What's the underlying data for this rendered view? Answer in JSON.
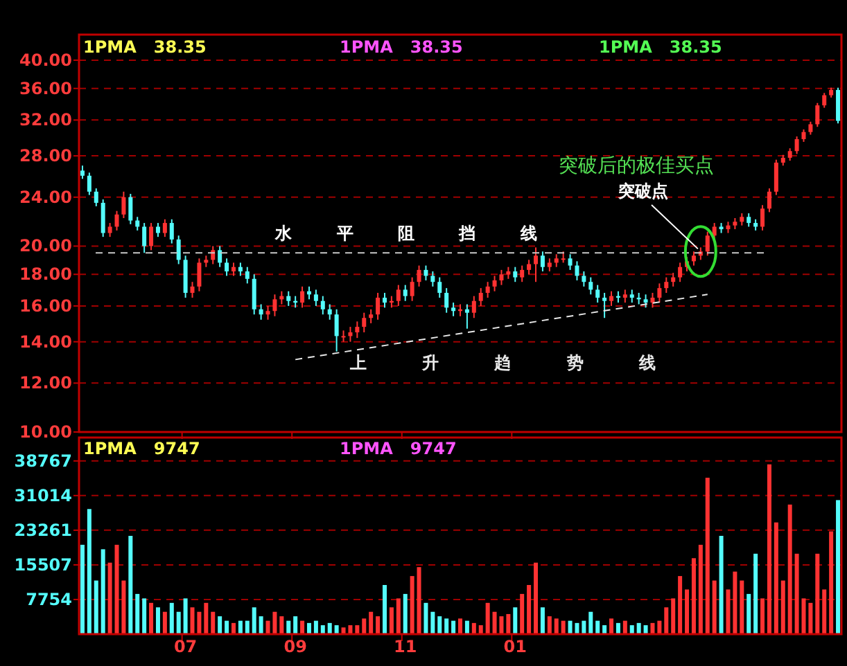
{
  "chart_data": [
    {
      "type": "candlestick",
      "log": "y",
      "grid": "y",
      "tick_labels": "y",
      "colors": [
        "#54fcfc",
        "#54fcfc",
        "#54fcfc",
        "#54fcfc",
        "#ff3232",
        "#ff3232",
        "#ff3232",
        "#54fcfc",
        "#54fcfc",
        "#54fcfc",
        "#ff3232",
        "#54fcfc",
        "#ff3232",
        "#54fcfc",
        "#54fcfc",
        "#54fcfc",
        "#ff3232",
        "#ff3232",
        "#ff3232",
        "#ff3232",
        "#54fcfc",
        "#54fcfc",
        "#ff3232",
        "#54fcfc",
        "#54fcfc",
        "#54fcfc",
        "#54fcfc",
        "#ff3232",
        "#ff3232",
        "#ff3232",
        "#54fcfc",
        "#54fcfc",
        "#ff3232",
        "#54fcfc",
        "#54fcfc",
        "#54fcfc",
        "#54fcfc",
        "#54fcfc",
        "#ff3232",
        "#ff3232",
        "#ff3232",
        "#ff3232",
        "#ff3232",
        "#ff3232",
        "#54fcfc",
        "#ff3232",
        "#ff3232",
        "#54fcfc",
        "#ff3232",
        "#ff3232",
        "#54fcfc",
        "#54fcfc",
        "#54fcfc",
        "#54fcfc",
        "#54fcfc",
        "#ff3232",
        "#54fcfc",
        "#ff3232",
        "#ff3232",
        "#ff3232",
        "#ff3232",
        "#ff3232",
        "#ff3232",
        "#54fcfc",
        "#ff3232",
        "#ff3232",
        "#ff3232",
        "#54fcfc",
        "#ff3232",
        "#ff3232",
        "#ff3232",
        "#54fcfc",
        "#54fcfc",
        "#54fcfc",
        "#54fcfc",
        "#54fcfc",
        "#54fcfc",
        "#ff3232",
        "#54fcfc",
        "#ff3232",
        "#54fcfc",
        "#54fcfc",
        "#54fcfc",
        "#ff3232",
        "#ff3232",
        "#ff3232",
        "#ff3232",
        "#ff3232",
        "#ff3232",
        "#ff3232",
        "#ff3232",
        "#ff3232",
        "#ff3232",
        "#54fcfc",
        "#ff3232",
        "#ff3232",
        "#ff3232",
        "#54fcfc",
        "#54fcfc",
        "#ff3232",
        "#ff3232",
        "#ff3232",
        "#ff3232",
        "#ff3232",
        "#ff3232",
        "#ff3232",
        "#ff3232",
        "#ff3232",
        "#ff3232",
        "#ff3232",
        "#54fcfc"
      ],
      "categories": [
        null,
        null,
        null,
        null,
        null,
        null,
        null,
        null,
        null,
        null,
        null,
        null,
        null,
        null,
        null,
        "07",
        null,
        null,
        null,
        null,
        null,
        null,
        null,
        null,
        null,
        null,
        null,
        null,
        null,
        null,
        null,
        "09",
        null,
        null,
        null,
        null,
        null,
        null,
        null,
        null,
        null,
        null,
        null,
        null,
        null,
        null,
        null,
        "11",
        null,
        null,
        null,
        null,
        null,
        null,
        null,
        null,
        null,
        null,
        null,
        null,
        null,
        null,
        null,
        "01",
        null,
        null,
        null,
        null,
        null,
        null,
        null,
        null,
        null,
        null,
        null,
        null,
        null,
        null,
        null,
        null,
        null,
        null,
        null,
        null,
        null,
        null,
        null,
        null,
        null,
        null,
        null,
        null,
        null,
        null,
        null,
        null,
        null,
        null,
        null,
        null,
        null,
        null,
        null,
        null,
        null,
        null,
        null,
        null,
        null,
        null,
        null
      ],
      "ohlc": [
        [
          26.5,
          27.0,
          25.7,
          26.0
        ],
        [
          26.0,
          26.3,
          24.2,
          24.5
        ],
        [
          24.5,
          24.8,
          23.2,
          23.5
        ],
        [
          23.5,
          23.8,
          20.7,
          21.0
        ],
        [
          21.0,
          21.8,
          20.7,
          21.5
        ],
        [
          21.5,
          22.8,
          21.2,
          22.5
        ],
        [
          22.5,
          24.5,
          22.2,
          24.0
        ],
        [
          24.0,
          24.3,
          21.7,
          22.0
        ],
        [
          22.0,
          22.3,
          21.2,
          21.5
        ],
        [
          21.5,
          21.8,
          19.5,
          20.0
        ],
        [
          20.0,
          21.8,
          19.7,
          21.5
        ],
        [
          21.5,
          21.8,
          20.7,
          21.0
        ],
        [
          21.0,
          22.1,
          20.7,
          21.8
        ],
        [
          21.8,
          22.1,
          20.2,
          20.5
        ],
        [
          20.5,
          20.8,
          18.7,
          19.0
        ],
        [
          19.0,
          19.3,
          16.5,
          16.8
        ],
        [
          16.8,
          17.5,
          16.5,
          17.2
        ],
        [
          17.2,
          19.1,
          16.9,
          18.8
        ],
        [
          18.8,
          19.3,
          18.5,
          19.0
        ],
        [
          19.0,
          20.0,
          18.7,
          19.7
        ],
        [
          19.7,
          20.0,
          18.5,
          18.8
        ],
        [
          18.8,
          19.1,
          17.9,
          18.2
        ],
        [
          18.2,
          18.8,
          17.9,
          18.5
        ],
        [
          18.5,
          18.8,
          17.9,
          18.2
        ],
        [
          18.2,
          18.5,
          17.4,
          17.7
        ],
        [
          17.7,
          18.0,
          15.5,
          15.8
        ],
        [
          15.8,
          16.1,
          15.2,
          15.5
        ],
        [
          15.5,
          16.0,
          15.2,
          15.7
        ],
        [
          15.7,
          16.7,
          15.4,
          16.4
        ],
        [
          16.4,
          16.9,
          16.1,
          16.6
        ],
        [
          16.6,
          16.9,
          16.0,
          16.3
        ],
        [
          16.3,
          16.6,
          15.9,
          16.2
        ],
        [
          16.2,
          17.2,
          15.9,
          16.9
        ],
        [
          16.9,
          17.2,
          16.4,
          16.7
        ],
        [
          16.7,
          17.0,
          16.0,
          16.3
        ],
        [
          16.3,
          16.6,
          15.5,
          15.8
        ],
        [
          15.8,
          16.1,
          15.2,
          15.5
        ],
        [
          15.5,
          15.8,
          13.5,
          14.3
        ],
        [
          14.3,
          14.6,
          14.0,
          14.3
        ],
        [
          14.3,
          14.8,
          14.0,
          14.5
        ],
        [
          14.5,
          15.1,
          14.2,
          14.8
        ],
        [
          14.8,
          15.6,
          14.5,
          15.3
        ],
        [
          15.3,
          15.8,
          15.0,
          15.5
        ],
        [
          15.5,
          16.8,
          15.2,
          16.5
        ],
        [
          16.5,
          16.8,
          15.9,
          16.2
        ],
        [
          16.2,
          16.6,
          15.9,
          16.3
        ],
        [
          16.3,
          17.3,
          16.0,
          17.0
        ],
        [
          17.0,
          17.3,
          16.3,
          16.6
        ],
        [
          16.6,
          17.8,
          16.3,
          17.5
        ],
        [
          17.5,
          18.6,
          17.2,
          18.3
        ],
        [
          18.3,
          18.6,
          17.6,
          17.9
        ],
        [
          17.9,
          18.2,
          17.2,
          17.5
        ],
        [
          17.5,
          17.8,
          16.5,
          16.8
        ],
        [
          16.8,
          17.1,
          15.6,
          15.9
        ],
        [
          15.9,
          16.2,
          15.4,
          15.7
        ],
        [
          15.7,
          16.1,
          15.4,
          15.8
        ],
        [
          15.8,
          16.1,
          14.7,
          15.6
        ],
        [
          15.6,
          16.6,
          15.3,
          16.3
        ],
        [
          16.3,
          17.1,
          16.0,
          16.8
        ],
        [
          16.8,
          17.5,
          16.5,
          17.2
        ],
        [
          17.2,
          17.9,
          16.9,
          17.6
        ],
        [
          17.6,
          18.3,
          17.3,
          18.0
        ],
        [
          18.0,
          18.5,
          17.7,
          18.2
        ],
        [
          18.2,
          18.5,
          17.5,
          17.8
        ],
        [
          17.8,
          18.6,
          17.5,
          18.3
        ],
        [
          18.3,
          19.0,
          18.0,
          18.7
        ],
        [
          18.7,
          19.9,
          17.5,
          19.3
        ],
        [
          19.3,
          19.6,
          18.2,
          18.5
        ],
        [
          18.5,
          19.1,
          18.2,
          18.8
        ],
        [
          18.8,
          19.4,
          18.5,
          19.1
        ],
        [
          19.1,
          19.6,
          18.8,
          19.1
        ],
        [
          19.1,
          19.4,
          18.3,
          18.6
        ],
        [
          18.6,
          18.9,
          17.6,
          17.9
        ],
        [
          17.9,
          18.2,
          17.2,
          17.5
        ],
        [
          17.5,
          17.8,
          16.7,
          17.0
        ],
        [
          17.0,
          17.3,
          16.2,
          16.5
        ],
        [
          16.5,
          16.8,
          15.3,
          16.3
        ],
        [
          16.3,
          16.9,
          16.0,
          16.6
        ],
        [
          16.6,
          16.9,
          16.2,
          16.5
        ],
        [
          16.5,
          17.0,
          16.2,
          16.7
        ],
        [
          16.7,
          17.0,
          16.2,
          16.5
        ],
        [
          16.5,
          16.8,
          16.1,
          16.4
        ],
        [
          16.4,
          16.7,
          15.9,
          16.2
        ],
        [
          16.2,
          16.8,
          15.9,
          16.5
        ],
        [
          16.5,
          17.4,
          16.2,
          17.1
        ],
        [
          17.1,
          17.8,
          16.8,
          17.5
        ],
        [
          17.5,
          18.1,
          17.2,
          17.8
        ],
        [
          17.8,
          18.8,
          17.5,
          18.5
        ],
        [
          18.5,
          19.2,
          18.2,
          18.9
        ],
        [
          18.9,
          19.6,
          18.6,
          19.3
        ],
        [
          19.3,
          19.9,
          19.0,
          19.6
        ],
        [
          19.6,
          21.1,
          19.3,
          20.8
        ],
        [
          20.8,
          21.8,
          20.5,
          21.5
        ],
        [
          21.5,
          21.8,
          21.0,
          21.3
        ],
        [
          21.3,
          21.9,
          21.0,
          21.6
        ],
        [
          21.6,
          22.2,
          21.3,
          21.9
        ],
        [
          21.9,
          22.6,
          21.6,
          22.3
        ],
        [
          22.3,
          22.6,
          21.5,
          21.8
        ],
        [
          21.8,
          22.1,
          21.2,
          21.5
        ],
        [
          21.5,
          23.3,
          21.2,
          23.0
        ],
        [
          23.0,
          24.8,
          22.7,
          24.5
        ],
        [
          24.5,
          27.6,
          24.2,
          27.3
        ],
        [
          27.3,
          28.1,
          27.0,
          27.8
        ],
        [
          27.8,
          28.8,
          27.5,
          28.5
        ],
        [
          28.5,
          30.1,
          28.2,
          29.8
        ],
        [
          29.8,
          30.9,
          29.5,
          30.6
        ],
        [
          30.6,
          31.8,
          30.3,
          31.5
        ],
        [
          31.5,
          34.1,
          31.2,
          33.8
        ],
        [
          33.8,
          35.4,
          33.5,
          35.1
        ],
        [
          35.1,
          36.1,
          34.8,
          35.8
        ],
        [
          35.8,
          36.1,
          31.6,
          31.9
        ]
      ],
      "ylim": [
        10,
        44
      ],
      "yticks": [
        {
          "value": 10,
          "label": "10.00"
        },
        {
          "value": 12,
          "label": "12.00"
        },
        {
          "value": 14,
          "label": "14.00"
        },
        {
          "value": 16,
          "label": "16.00"
        },
        {
          "value": 18,
          "label": "18.00"
        },
        {
          "value": 20,
          "label": "20.00"
        },
        {
          "value": 24,
          "label": "24.00"
        },
        {
          "value": 28,
          "label": "28.00"
        },
        {
          "value": 32,
          "label": "32.00"
        },
        {
          "value": 36,
          "label": "36.00"
        },
        {
          "value": 40,
          "label": "40.00"
        }
      ],
      "ref_lines": [
        {
          "axis": "y",
          "value": 19.5,
          "label": "水 平 阻 挡 线",
          "color": "#c8c8c8",
          "line_style": "dashed"
        }
      ],
      "series": [
        {
          "type": "line",
          "name": "上 升 趋 势 线",
          "color": "#e8e8e8",
          "line_style": "dashed",
          "values": [
            null,
            null,
            null,
            null,
            null,
            null,
            null,
            null,
            null,
            null,
            null,
            null,
            null,
            null,
            null,
            null,
            null,
            null,
            null,
            null,
            null,
            null,
            null,
            null,
            null,
            null,
            null,
            null,
            null,
            null,
            null,
            13.1,
            null,
            null,
            null,
            null,
            null,
            null,
            null,
            null,
            null,
            null,
            null,
            null,
            null,
            null,
            null,
            null,
            null,
            null,
            null,
            null,
            null,
            null,
            null,
            null,
            null,
            null,
            null,
            null,
            null,
            null,
            null,
            null,
            null,
            null,
            null,
            null,
            null,
            null,
            null,
            null,
            null,
            null,
            null,
            null,
            null,
            null,
            null,
            null,
            null,
            null,
            null,
            null,
            null,
            null,
            null,
            null,
            null,
            null,
            null,
            16.7,
            null,
            null,
            null,
            null,
            null,
            null,
            null,
            null,
            null,
            null,
            null,
            null,
            null,
            null,
            null,
            null,
            null,
            null,
            null
          ]
        }
      ],
      "annotations": [
        "1PMA   38.35",
        "1PMA   38.35",
        "1PMA   38.35",
        "突破后的极佳买点",
        "突破点"
      ]
    },
    {
      "type": "bar",
      "grid": "y",
      "colors": [
        "#54fcfc",
        "#54fcfc",
        "#54fcfc",
        "#54fcfc",
        "#ff3232",
        "#ff3232",
        "#ff3232",
        "#54fcfc",
        "#54fcfc",
        "#54fcfc",
        "#ff3232",
        "#54fcfc",
        "#ff3232",
        "#54fcfc",
        "#54fcfc",
        "#54fcfc",
        "#ff3232",
        "#ff3232",
        "#ff3232",
        "#ff3232",
        "#54fcfc",
        "#54fcfc",
        "#ff3232",
        "#54fcfc",
        "#54fcfc",
        "#54fcfc",
        "#54fcfc",
        "#ff3232",
        "#ff3232",
        "#ff3232",
        "#54fcfc",
        "#54fcfc",
        "#ff3232",
        "#54fcfc",
        "#54fcfc",
        "#54fcfc",
        "#54fcfc",
        "#54fcfc",
        "#ff3232",
        "#ff3232",
        "#ff3232",
        "#ff3232",
        "#ff3232",
        "#ff3232",
        "#54fcfc",
        "#ff3232",
        "#ff3232",
        "#54fcfc",
        "#ff3232",
        "#ff3232",
        "#54fcfc",
        "#54fcfc",
        "#54fcfc",
        "#54fcfc",
        "#54fcfc",
        "#ff3232",
        "#54fcfc",
        "#ff3232",
        "#ff3232",
        "#ff3232",
        "#ff3232",
        "#ff3232",
        "#ff3232",
        "#54fcfc",
        "#ff3232",
        "#ff3232",
        "#ff3232",
        "#54fcfc",
        "#ff3232",
        "#ff3232",
        "#ff3232",
        "#54fcfc",
        "#54fcfc",
        "#54fcfc",
        "#54fcfc",
        "#54fcfc",
        "#54fcfc",
        "#ff3232",
        "#54fcfc",
        "#ff3232",
        "#54fcfc",
        "#54fcfc",
        "#54fcfc",
        "#ff3232",
        "#ff3232",
        "#ff3232",
        "#ff3232",
        "#ff3232",
        "#ff3232",
        "#ff3232",
        "#ff3232",
        "#ff3232",
        "#ff3232",
        "#54fcfc",
        "#ff3232",
        "#ff3232",
        "#ff3232",
        "#54fcfc",
        "#54fcfc",
        "#ff3232",
        "#ff3232",
        "#ff3232",
        "#ff3232",
        "#ff3232",
        "#ff3232",
        "#ff3232",
        "#ff3232",
        "#ff3232",
        "#ff3232",
        "#ff3232",
        "#54fcfc"
      ],
      "categories": [
        null,
        null,
        null,
        null,
        null,
        null,
        null,
        null,
        null,
        null,
        null,
        null,
        null,
        null,
        null,
        "07",
        null,
        null,
        null,
        null,
        null,
        null,
        null,
        null,
        null,
        null,
        null,
        null,
        null,
        null,
        null,
        "09",
        null,
        null,
        null,
        null,
        null,
        null,
        null,
        null,
        null,
        null,
        null,
        null,
        null,
        null,
        null,
        "11",
        null,
        null,
        null,
        null,
        null,
        null,
        null,
        null,
        null,
        null,
        null,
        null,
        null,
        null,
        null,
        "01",
        null,
        null,
        null,
        null,
        null,
        null,
        null,
        null,
        null,
        null,
        null,
        null,
        null,
        null,
        null,
        null,
        null,
        null,
        null,
        null,
        null,
        null,
        null,
        null,
        null,
        null,
        null,
        null,
        null,
        null,
        null,
        null,
        null,
        null,
        null,
        null,
        null,
        null,
        null,
        null,
        null,
        null,
        null,
        null,
        null,
        null,
        null
      ],
      "values": [
        20000,
        28000,
        12000,
        19000,
        16000,
        20000,
        12000,
        22000,
        9000,
        8000,
        7000,
        6000,
        5000,
        7000,
        5000,
        8000,
        6000,
        5000,
        7000,
        5000,
        4000,
        3000,
        2500,
        3000,
        3000,
        6000,
        4000,
        3000,
        5000,
        4000,
        3000,
        4000,
        3000,
        2500,
        3000,
        2000,
        2500,
        2000,
        1500,
        2000,
        2000,
        3500,
        5000,
        4000,
        11000,
        6000,
        8000,
        9000,
        13000,
        15000,
        7000,
        5000,
        4000,
        3500,
        3000,
        3500,
        3000,
        2500,
        2000,
        7000,
        5000,
        4000,
        4500,
        6000,
        9000,
        11000,
        16000,
        6000,
        4000,
        3500,
        3000,
        3000,
        2500,
        3000,
        5000,
        3000,
        2000,
        3500,
        2500,
        3000,
        2000,
        2500,
        2000,
        2500,
        3000,
        6000,
        8000,
        13000,
        10000,
        17000,
        20000,
        35000,
        12000,
        22000,
        10000,
        14000,
        12000,
        9000,
        18000,
        8000,
        38000,
        25000,
        12000,
        29000,
        18000,
        8000,
        7000,
        18000,
        10000,
        23000,
        30000
      ],
      "ylim": [
        0,
        44000
      ],
      "yticks": [
        7754,
        15507,
        23261,
        31014,
        38767
      ],
      "annotations": [
        "1PMA   9747",
        "1PMA   9747"
      ]
    }
  ]
}
